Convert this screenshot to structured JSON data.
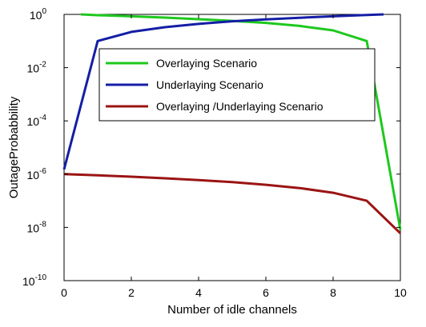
{
  "chart_data": {
    "type": "line",
    "title": "",
    "xlabel": "Number of idle channels",
    "ylabel": "OutageProbabbility",
    "x_scale": "linear",
    "y_scale": "log",
    "xlim": [
      0,
      10
    ],
    "ylim": [
      1e-10,
      1
    ],
    "x_ticks": [
      0,
      2,
      4,
      6,
      8,
      10
    ],
    "x_tick_labels": [
      "0",
      "2",
      "4",
      "6",
      "8",
      "10"
    ],
    "y_ticks": [
      -10,
      -8,
      -6,
      -4,
      -2,
      0
    ],
    "y_tick_base": "10",
    "y_tick_exponents": [
      "-10",
      "-8",
      "-6",
      "-4",
      "-2",
      "0"
    ],
    "grid": false,
    "legend_position": "upper-center",
    "series": [
      {
        "name": "Overlaying Scenario",
        "color": "#1ec81e",
        "x": [
          0.5,
          1,
          2,
          3,
          4,
          5,
          6,
          7,
          8,
          9,
          10
        ],
        "y": [
          1.0,
          0.93,
          0.85,
          0.76,
          0.66,
          0.57,
          0.48,
          0.37,
          0.25,
          0.1,
          8e-09
        ]
      },
      {
        "name": "Underlaying Scenario",
        "color": "#141ea5",
        "x": [
          0,
          1,
          2,
          3,
          4,
          5,
          6,
          7,
          8,
          9,
          9.5
        ],
        "y": [
          1.5e-06,
          0.1,
          0.22,
          0.33,
          0.44,
          0.55,
          0.65,
          0.75,
          0.85,
          0.95,
          1.0
        ]
      },
      {
        "name": "Overlaying /Underlaying Scenario",
        "color": "#9b1414",
        "x": [
          0,
          1,
          2,
          3,
          4,
          5,
          6,
          7,
          8,
          9,
          10
        ],
        "y": [
          1e-06,
          9e-07,
          8e-07,
          7e-07,
          6e-07,
          5e-07,
          4e-07,
          3e-07,
          2e-07,
          1e-07,
          6e-09
        ]
      }
    ]
  }
}
